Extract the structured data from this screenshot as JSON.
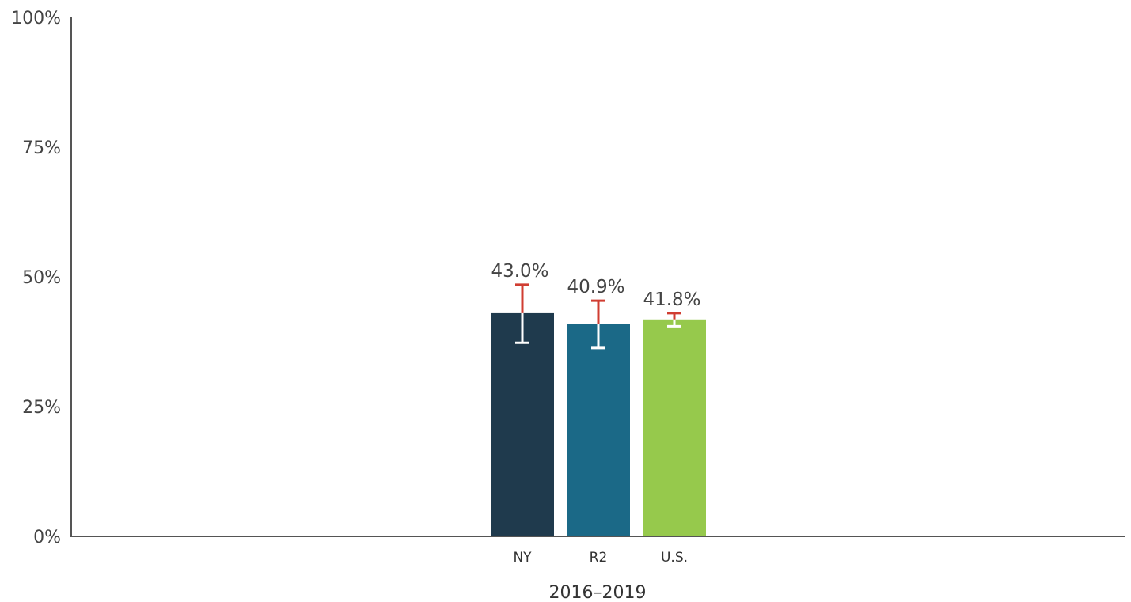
{
  "chart_data": {
    "type": "bar",
    "title": "",
    "xlabel": "2016–2019",
    "ylabel": "",
    "ylim": [
      0,
      100
    ],
    "yticks": [
      0,
      25,
      50,
      75,
      100
    ],
    "ytick_labels": [
      "0%",
      "25%",
      "50%",
      "75%",
      "100%"
    ],
    "grid": false,
    "legend": "none",
    "categories": [
      "NY",
      "R2",
      "U.S."
    ],
    "values": [
      43.0,
      40.9,
      41.8
    ],
    "data_labels": [
      "43.0%",
      "40.9%",
      "41.8%"
    ],
    "error_bars": [
      {
        "low": 37.3,
        "high": 48.5
      },
      {
        "low": 36.3,
        "high": 45.4
      },
      {
        "low": 40.5,
        "high": 43.0
      }
    ],
    "colors": [
      "#1f3a4d",
      "#1b6987",
      "#96c94c"
    ],
    "error_upper_color": "#d03d32",
    "error_lower_color": "#ffffff",
    "axis_color": "#555555"
  }
}
